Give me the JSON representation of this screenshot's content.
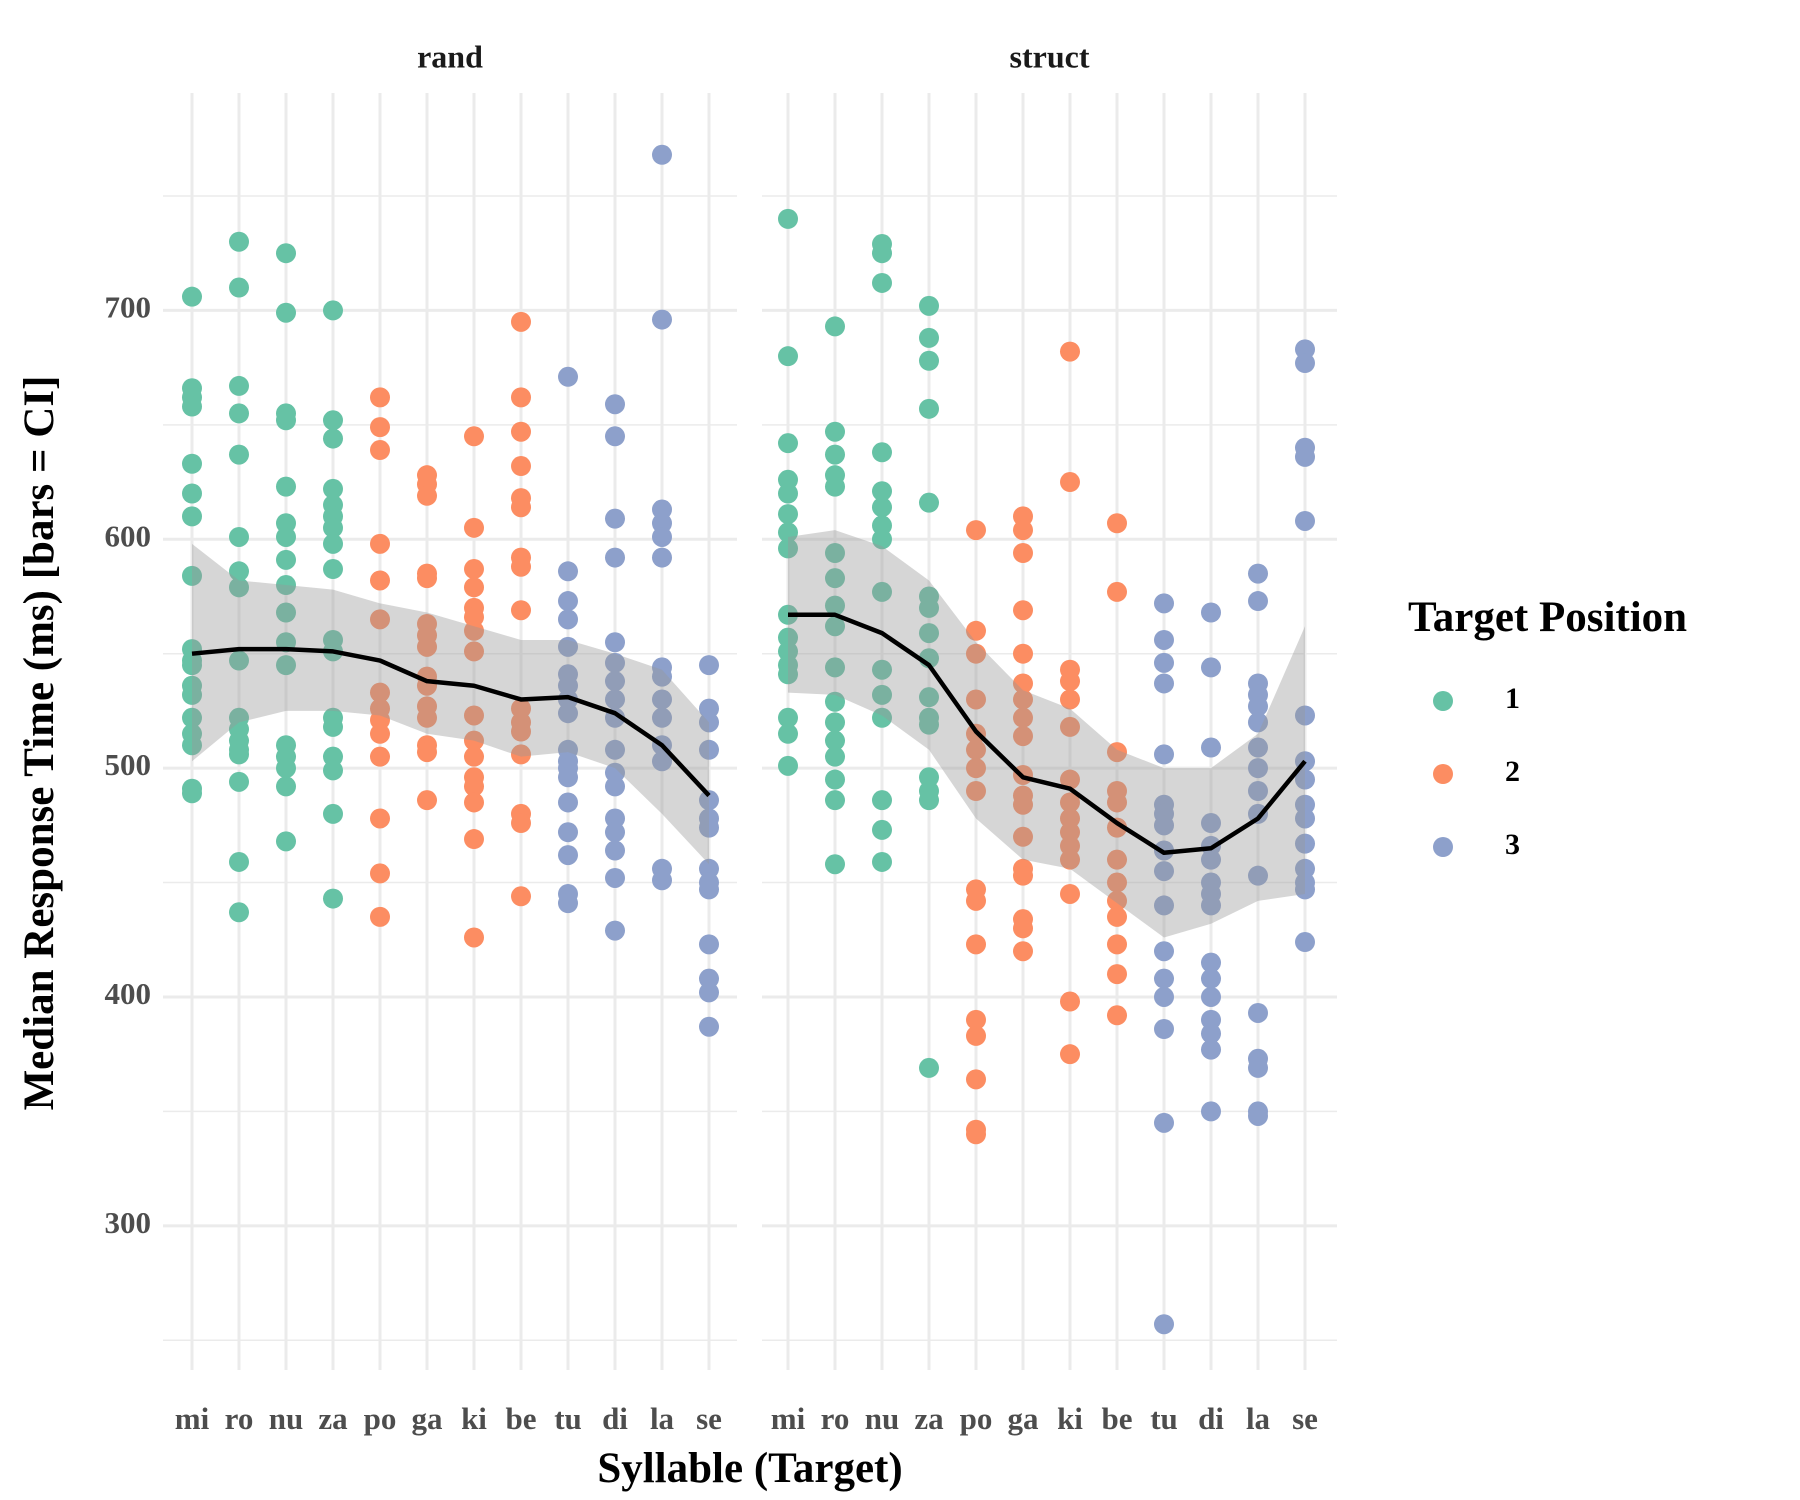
{
  "chart_data": {
    "type": "strip",
    "xlabel": "Syllable (Target)",
    "ylabel": "Median Response Time (ms) [bars = CI]",
    "ylim": [
      237,
      795
    ],
    "yticks": [
      300,
      400,
      500,
      600,
      700
    ],
    "minor_yticks": [
      250,
      350,
      450,
      550,
      650,
      750
    ],
    "grid": true,
    "categories": [
      "mi",
      "ro",
      "nu",
      "za",
      "po",
      "ga",
      "ki",
      "be",
      "tu",
      "di",
      "la",
      "se"
    ],
    "legend": {
      "title": "Target Position",
      "position": "right"
    },
    "series": [
      {
        "name": "1",
        "color": "#66c2a5",
        "categories": [
          "mi",
          "ro",
          "nu",
          "za"
        ]
      },
      {
        "name": "2",
        "color": "#fc8d62",
        "categories": [
          "po",
          "ga",
          "ki",
          "be"
        ]
      },
      {
        "name": "3",
        "color": "#8da0cb",
        "categories": [
          "tu",
          "di",
          "la",
          "se"
        ]
      }
    ],
    "smooth_color": "#000000",
    "band_color": "#999999",
    "panels": [
      {
        "title": "rand",
        "values": [
          [
            706,
            666,
            662,
            658,
            633,
            620,
            610,
            584,
            552,
            547,
            545,
            536,
            532,
            522,
            515,
            510,
            491,
            489
          ],
          [
            730,
            710,
            667,
            655,
            637,
            601,
            586,
            579,
            547,
            522,
            517,
            512,
            508,
            506,
            494,
            459,
            437
          ],
          [
            725,
            699,
            655,
            652,
            623,
            607,
            601,
            591,
            580,
            568,
            555,
            545,
            510,
            505,
            500,
            492,
            468
          ],
          [
            700,
            652,
            644,
            622,
            615,
            610,
            605,
            598,
            587,
            556,
            551,
            522,
            518,
            505,
            499,
            480,
            443
          ],
          [
            662,
            649,
            639,
            598,
            582,
            565,
            533,
            526,
            521,
            515,
            505,
            478,
            454,
            435
          ],
          [
            628,
            624,
            619,
            585,
            583,
            563,
            558,
            553,
            540,
            536,
            527,
            522,
            510,
            507,
            486
          ],
          [
            645,
            605,
            587,
            579,
            570,
            566,
            560,
            551,
            523,
            512,
            505,
            496,
            492,
            485,
            469,
            426
          ],
          [
            695,
            662,
            647,
            632,
            618,
            614,
            592,
            588,
            569,
            526,
            520,
            516,
            506,
            480,
            476,
            444
          ],
          [
            671,
            586,
            573,
            565,
            553,
            541,
            536,
            530,
            524,
            508,
            503,
            500,
            496,
            485,
            472,
            462,
            445,
            441
          ],
          [
            659,
            645,
            609,
            592,
            555,
            546,
            538,
            530,
            522,
            508,
            498,
            492,
            478,
            472,
            464,
            452,
            429
          ],
          [
            768,
            696,
            613,
            607,
            601,
            592,
            544,
            540,
            530,
            522,
            510,
            503,
            456,
            451
          ],
          [
            545,
            526,
            520,
            508,
            486,
            478,
            474,
            456,
            450,
            447,
            423,
            408,
            402,
            387
          ]
        ],
        "smooth": [
          550,
          552,
          552,
          551,
          547,
          538,
          536,
          530,
          531,
          524,
          510,
          488
        ],
        "lower": [
          503,
          520,
          525,
          525,
          523,
          515,
          512,
          505,
          507,
          500,
          480,
          458
        ],
        "upper": [
          598,
          582,
          580,
          578,
          572,
          568,
          562,
          556,
          556,
          550,
          543,
          520
        ]
      },
      {
        "title": "struct",
        "values": [
          [
            740,
            680,
            642,
            626,
            620,
            611,
            603,
            596,
            567,
            557,
            551,
            545,
            541,
            522,
            515,
            501
          ],
          [
            693,
            647,
            637,
            628,
            623,
            594,
            583,
            571,
            562,
            544,
            529,
            520,
            512,
            505,
            495,
            486,
            458
          ],
          [
            729,
            725,
            712,
            638,
            621,
            614,
            606,
            600,
            577,
            543,
            532,
            522,
            486,
            473,
            459
          ],
          [
            702,
            688,
            678,
            657,
            616,
            575,
            570,
            559,
            548,
            531,
            522,
            519,
            496,
            490,
            486,
            369
          ],
          [
            604,
            560,
            550,
            530,
            515,
            508,
            500,
            490,
            447,
            442,
            423,
            390,
            383,
            364,
            342,
            340
          ],
          [
            610,
            604,
            594,
            569,
            550,
            537,
            530,
            522,
            514,
            497,
            488,
            484,
            470,
            456,
            453,
            434,
            430,
            420
          ],
          [
            682,
            625,
            543,
            538,
            530,
            518,
            495,
            485,
            478,
            472,
            466,
            460,
            445,
            398,
            375
          ],
          [
            607,
            577,
            507,
            490,
            485,
            474,
            460,
            450,
            442,
            435,
            423,
            410,
            392
          ],
          [
            572,
            556,
            546,
            537,
            506,
            484,
            480,
            475,
            464,
            455,
            440,
            420,
            408,
            400,
            386,
            345,
            257
          ],
          [
            568,
            544,
            509,
            476,
            466,
            460,
            450,
            445,
            440,
            415,
            408,
            400,
            390,
            384,
            377,
            350
          ],
          [
            585,
            573,
            537,
            532,
            527,
            520,
            509,
            500,
            490,
            480,
            453,
            393,
            373,
            369,
            350,
            348
          ],
          [
            683,
            677,
            640,
            636,
            608,
            523,
            503,
            495,
            484,
            478,
            467,
            456,
            450,
            447,
            424
          ]
        ],
        "smooth": [
          567,
          567,
          559,
          545,
          516,
          496,
          491,
          476,
          463,
          465,
          478,
          503
        ],
        "lower": [
          533,
          532,
          523,
          508,
          478,
          460,
          456,
          441,
          426,
          432,
          442,
          445
        ],
        "upper": [
          601,
          604,
          597,
          582,
          555,
          534,
          526,
          508,
          500,
          500,
          515,
          562
        ]
      }
    ]
  }
}
